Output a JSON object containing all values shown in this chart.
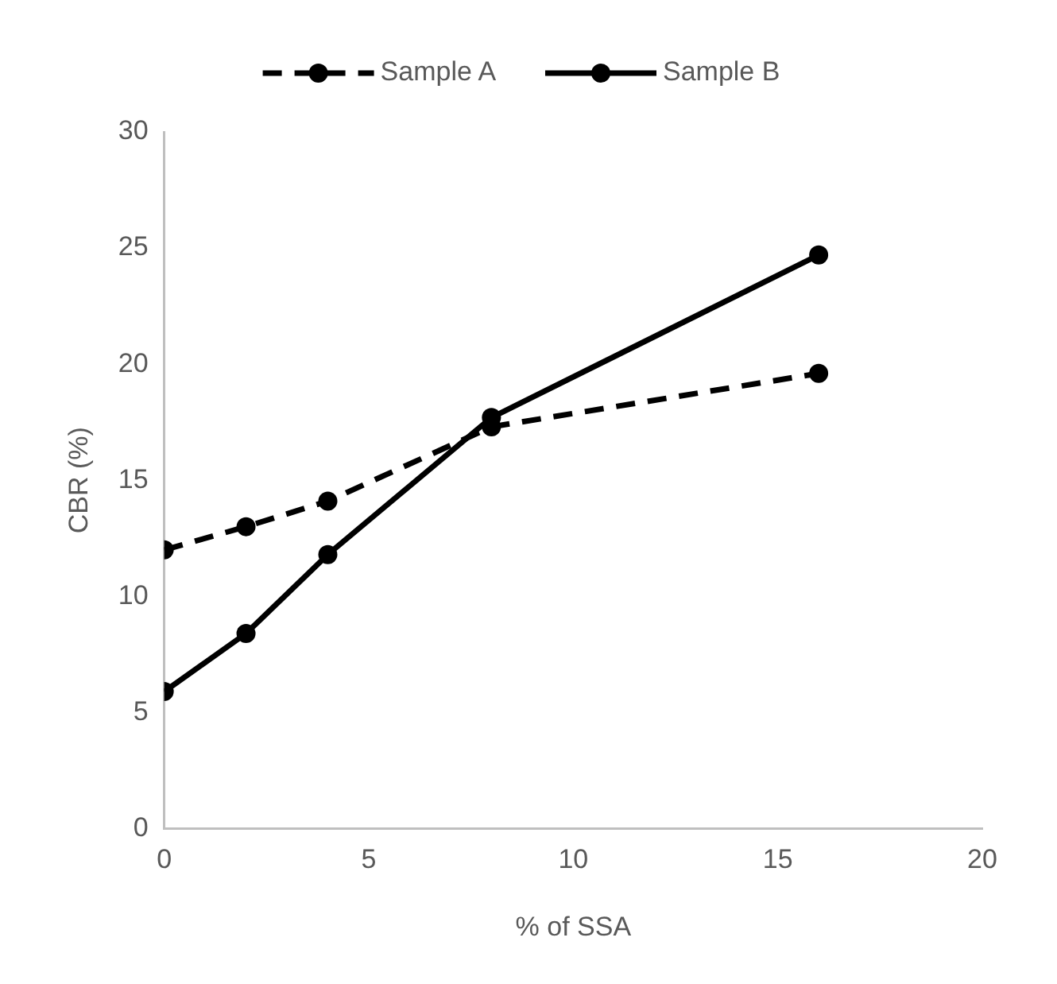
{
  "chart_data": {
    "type": "line",
    "xlabel": "% of SSA",
    "ylabel": "CBR (%)",
    "xlim": [
      0,
      20
    ],
    "xticks": [
      0,
      5,
      10,
      15,
      20
    ],
    "ylim": [
      0,
      30
    ],
    "yticks": [
      0,
      5,
      10,
      15,
      20,
      25,
      30
    ],
    "grid": false,
    "legend": "top",
    "marker": "circle",
    "x": [
      0,
      2,
      4,
      8,
      16
    ],
    "series": [
      {
        "name": "Sample A",
        "color": "#000000",
        "line_style": "dashed",
        "values": [
          12.0,
          13.0,
          14.1,
          17.3,
          19.6
        ]
      },
      {
        "name": "Sample B",
        "color": "#000000",
        "line_style": "solid",
        "values": [
          5.9,
          8.4,
          11.8,
          17.7,
          24.7
        ]
      }
    ]
  }
}
